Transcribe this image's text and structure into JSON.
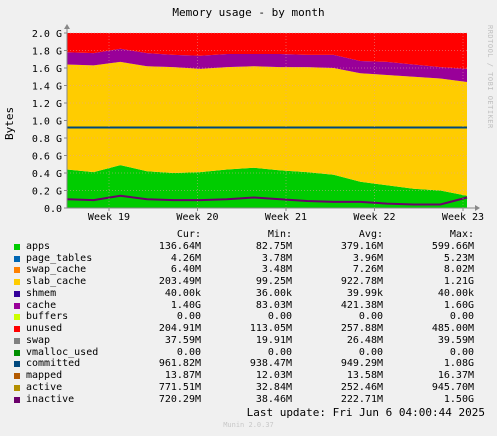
{
  "chart_data": {
    "type": "area",
    "title": "Memory usage - by month",
    "ylabel": "Bytes",
    "xlabel": "",
    "ylim": [
      0,
      2.0
    ],
    "y_unit": "G",
    "y_ticks": [
      "0.0",
      "0.2 G",
      "0.4 G",
      "0.6 G",
      "0.8 G",
      "1.0 G",
      "1.2 G",
      "1.4 G",
      "1.6 G",
      "1.8 G",
      "2.0 G"
    ],
    "x_ticks": [
      "Week 19",
      "Week 20",
      "Week 21",
      "Week 22",
      "Week 23"
    ],
    "grid": true,
    "legend_position": "bottom",
    "x": [
      "Week 18.6",
      "Week 19.0",
      "Week 19.3",
      "Week 19.7",
      "Week 20.0",
      "Week 20.3",
      "Week 20.6",
      "Week 20.9",
      "Week 21.0",
      "Week 21.3",
      "Week 21.6",
      "Week 22.0",
      "Week 22.3",
      "Week 22.6",
      "Week 23.0",
      "Week 23.2"
    ],
    "series": [
      {
        "name": "apps",
        "values": [
          0.44,
          0.41,
          0.49,
          0.42,
          0.4,
          0.41,
          0.44,
          0.46,
          0.43,
          0.41,
          0.38,
          0.3,
          0.26,
          0.22,
          0.2,
          0.14
        ]
      },
      {
        "name": "slab_cache",
        "values": [
          1.2,
          1.22,
          1.18,
          1.2,
          1.21,
          1.18,
          1.17,
          1.16,
          1.18,
          1.2,
          1.22,
          1.24,
          1.26,
          1.28,
          1.28,
          1.3
        ]
      },
      {
        "name": "cache",
        "values": [
          0.14,
          0.14,
          0.15,
          0.15,
          0.14,
          0.15,
          0.15,
          0.14,
          0.15,
          0.14,
          0.15,
          0.14,
          0.15,
          0.14,
          0.13,
          0.15
        ]
      },
      {
        "name": "unused",
        "values": [
          0.22,
          0.23,
          0.18,
          0.23,
          0.25,
          0.26,
          0.24,
          0.24,
          0.24,
          0.25,
          0.25,
          0.32,
          0.33,
          0.36,
          0.39,
          0.41
        ]
      },
      {
        "name": "committed",
        "values": [
          0.92,
          0.92,
          0.92,
          0.92,
          0.92,
          0.92,
          0.92,
          0.92,
          0.92,
          0.92,
          0.92,
          0.92,
          0.92,
          0.92,
          0.92,
          0.92
        ]
      },
      {
        "name": "inactive",
        "values": [
          0.1,
          0.09,
          0.14,
          0.1,
          0.09,
          0.09,
          0.1,
          0.12,
          0.1,
          0.08,
          0.07,
          0.07,
          0.05,
          0.04,
          0.04,
          0.12
        ]
      }
    ],
    "colors": {
      "apps": "#00cc00",
      "page_tables": "#0066b3",
      "swap_cache": "#ff8000",
      "slab_cache": "#ffcc00",
      "shmem": "#330099",
      "cache": "#990099",
      "buffers": "#ccff00",
      "unused": "#ff0000",
      "swap": "#808080",
      "vmalloc_used": "#008f00",
      "committed": "#00487d",
      "mapped": "#b35a00",
      "active": "#b38f00",
      "inactive": "#6b006b"
    }
  },
  "legend": {
    "headers": [
      "Cur:",
      "Min:",
      "Avg:",
      "Max:"
    ],
    "rows": [
      {
        "name": "apps",
        "color": "#00cc00",
        "cur": "136.64M",
        "min": "82.75M",
        "avg": "379.16M",
        "max": "599.66M"
      },
      {
        "name": "page_tables",
        "color": "#0066b3",
        "cur": "4.26M",
        "min": "3.78M",
        "avg": "3.96M",
        "max": "5.23M"
      },
      {
        "name": "swap_cache",
        "color": "#ff8000",
        "cur": "6.40M",
        "min": "3.48M",
        "avg": "7.26M",
        "max": "8.02M"
      },
      {
        "name": "slab_cache",
        "color": "#ffcc00",
        "cur": "203.49M",
        "min": "99.25M",
        "avg": "922.78M",
        "max": "1.21G"
      },
      {
        "name": "shmem",
        "color": "#330099",
        "cur": "40.00k",
        "min": "36.00k",
        "avg": "39.99k",
        "max": "40.00k"
      },
      {
        "name": "cache",
        "color": "#990099",
        "cur": "1.40G",
        "min": "83.03M",
        "avg": "421.38M",
        "max": "1.60G"
      },
      {
        "name": "buffers",
        "color": "#ccff00",
        "cur": "0.00",
        "min": "0.00",
        "avg": "0.00",
        "max": "0.00"
      },
      {
        "name": "unused",
        "color": "#ff0000",
        "cur": "204.91M",
        "min": "113.05M",
        "avg": "257.88M",
        "max": "485.00M"
      },
      {
        "name": "swap",
        "color": "#808080",
        "cur": "37.59M",
        "min": "19.91M",
        "avg": "26.48M",
        "max": "39.59M"
      },
      {
        "name": "vmalloc_used",
        "color": "#008f00",
        "cur": "0.00",
        "min": "0.00",
        "avg": "0.00",
        "max": "0.00"
      },
      {
        "name": "committed",
        "color": "#00487d",
        "cur": "961.82M",
        "min": "938.47M",
        "avg": "949.29M",
        "max": "1.08G"
      },
      {
        "name": "mapped",
        "color": "#b35a00",
        "cur": "13.87M",
        "min": "12.03M",
        "avg": "13.58M",
        "max": "16.37M"
      },
      {
        "name": "active",
        "color": "#b38f00",
        "cur": "771.51M",
        "min": "32.84M",
        "avg": "252.46M",
        "max": "945.70M"
      },
      {
        "name": "inactive",
        "color": "#6b006b",
        "cur": "720.29M",
        "min": "38.46M",
        "avg": "222.71M",
        "max": "1.50G"
      }
    ]
  },
  "last_update": "Last update: Fri Jun  6 04:00:44 2025",
  "footer": "Munin 2.0.37",
  "watermark": "RRDTOOL / TOBI OETIKER"
}
